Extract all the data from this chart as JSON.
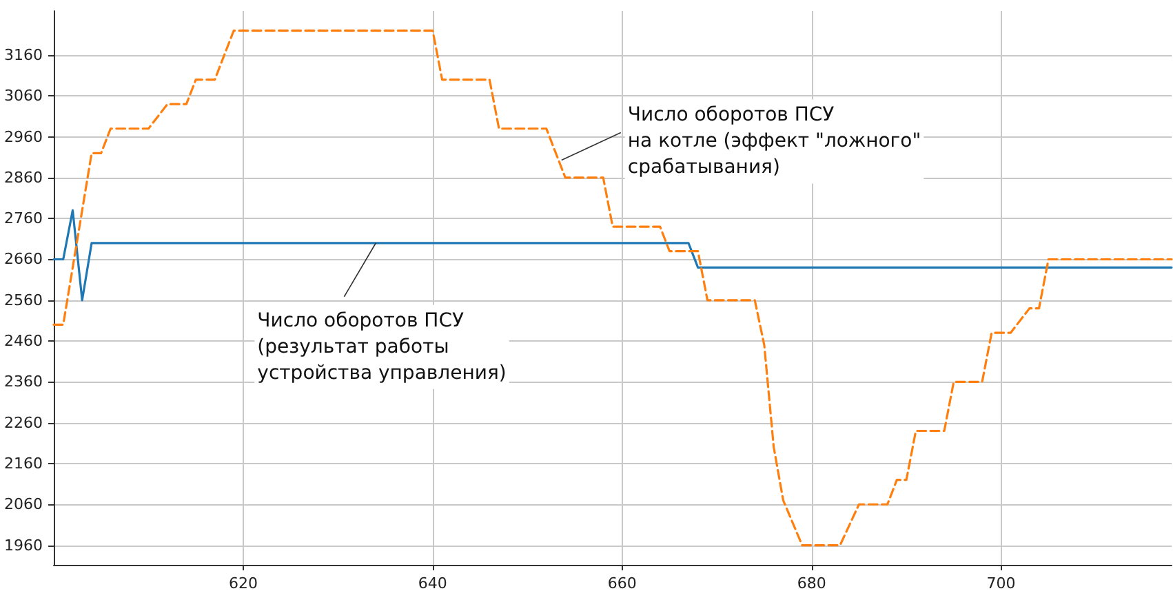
{
  "chart_data": {
    "type": "line",
    "xlim": [
      600,
      718
    ],
    "xticks": [
      620,
      640,
      660,
      680,
      700
    ],
    "ylim": [
      1912,
      3268
    ],
    "yticks": [
      1960,
      2060,
      2160,
      2260,
      2360,
      2460,
      2560,
      2660,
      2760,
      2860,
      2960,
      3060,
      3160
    ],
    "grid": true,
    "marker": "none",
    "series": [
      {
        "color": "#1f77b4",
        "line_style": "solid",
        "x": [
          600,
          601,
          602,
          603,
          604,
          667,
          668,
          718
        ],
        "values": [
          2660,
          2660,
          2780,
          2560,
          2700,
          2700,
          2640,
          2640
        ]
      },
      {
        "color": "#ff7f0e",
        "line_style": "dashed",
        "x": [
          600,
          601,
          604,
          605,
          606,
          610,
          612,
          614,
          615,
          617,
          619,
          640,
          641,
          646,
          647,
          652,
          654,
          658,
          659,
          664,
          665,
          668,
          669,
          674,
          675,
          676,
          677,
          679,
          683,
          685,
          688,
          689,
          690,
          691,
          694,
          695,
          698,
          699,
          701,
          703,
          704,
          705,
          718
        ],
        "values": [
          2500,
          2500,
          2920,
          2920,
          2980,
          2980,
          3040,
          3040,
          3100,
          3100,
          3220,
          3220,
          3100,
          3100,
          2980,
          2980,
          2860,
          2860,
          2740,
          2740,
          2680,
          2680,
          2560,
          2560,
          2450,
          2200,
          2070,
          1960,
          1960,
          2060,
          2060,
          2120,
          2120,
          2240,
          2240,
          2360,
          2360,
          2480,
          2480,
          2540,
          2540,
          2660,
          2660
        ]
      }
    ],
    "annotations": [
      {
        "text": "Число оборотов ПСУ\n(результат работы\nустройства управления)",
        "x": 634,
        "y": 2700
      },
      {
        "text": "Число оборотов ПСУ\nна котле (эффект \"ложного\"\nсрабатывания)",
        "x": 653.6,
        "y": 2903
      }
    ]
  }
}
